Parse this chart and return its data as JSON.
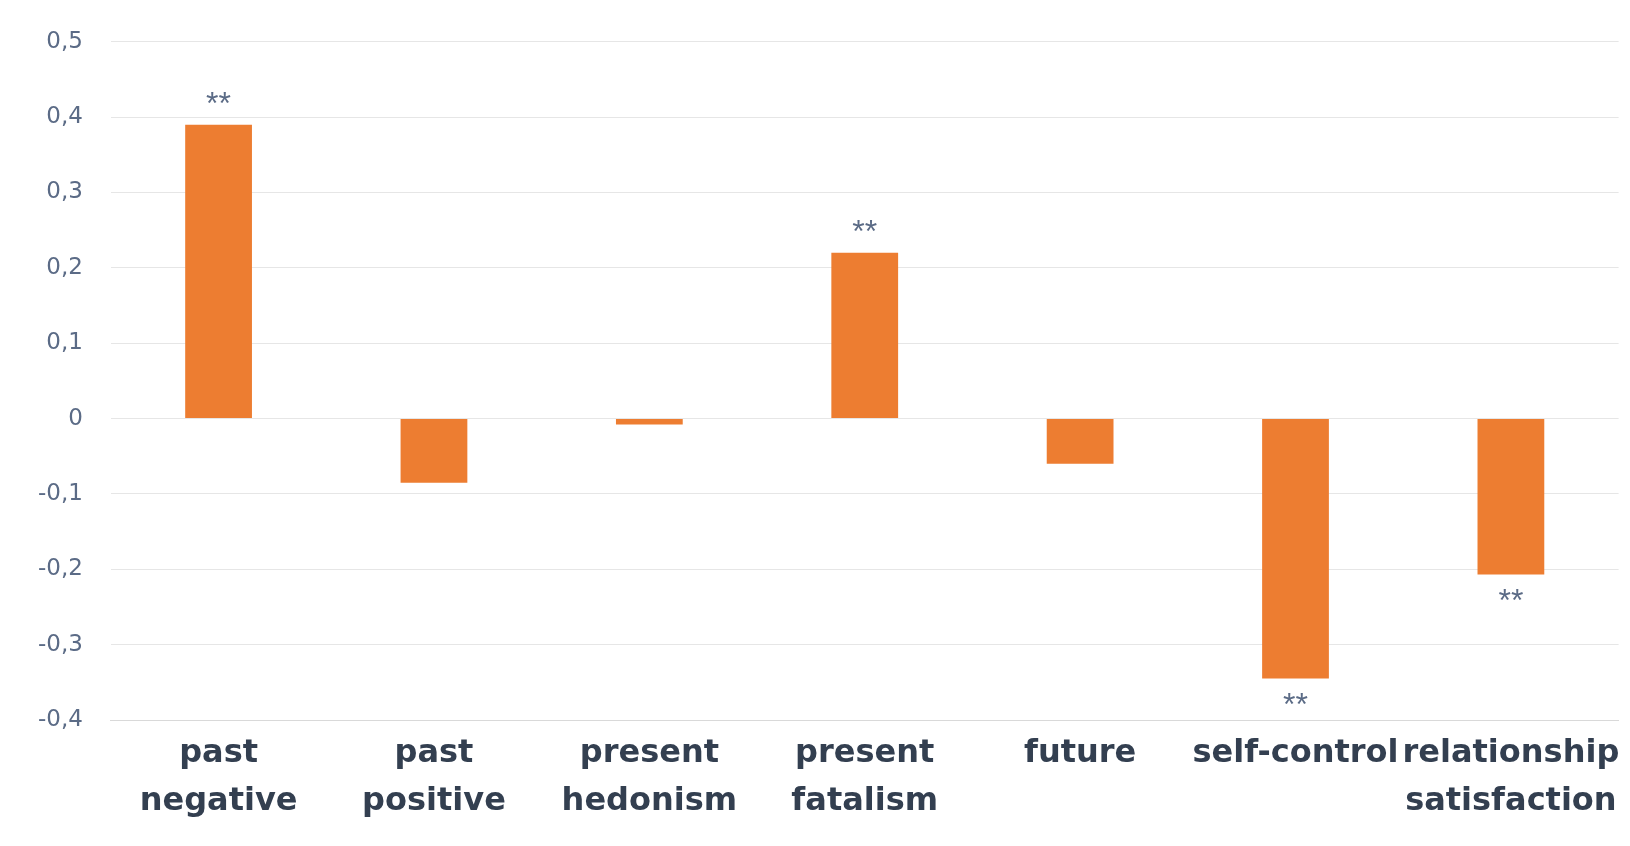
{
  "chart_data": {
    "type": "bar",
    "categories": [
      "past negative",
      "past positive",
      "present hedonism",
      "present fatalism",
      "future",
      "self-control",
      "relationship satisfaction"
    ],
    "values": [
      0.39,
      -0.085,
      -0.008,
      0.22,
      -0.06,
      -0.345,
      -0.207
    ],
    "color": "#ed7d31",
    "ylim": [
      -0.4,
      0.5
    ],
    "yticks": [
      {
        "value": -0.4,
        "label": "-0,4"
      },
      {
        "value": -0.3,
        "label": "-0,3"
      },
      {
        "value": -0.2,
        "label": "-0,2"
      },
      {
        "value": -0.1,
        "label": "-0,1"
      },
      0,
      {
        "value": 0.1,
        "label": "0,1"
      },
      {
        "value": 0.2,
        "label": "0,2"
      },
      {
        "value": 0.3,
        "label": "0,3"
      },
      {
        "value": 0.4,
        "label": "0,4"
      },
      {
        "value": 0.5,
        "label": "0,5"
      }
    ],
    "grid": "y",
    "annotations": [
      {
        "text": "**",
        "x": "past negative",
        "y": 0.39
      },
      {
        "text": "**",
        "x": "present fatalism",
        "y": 0.22
      },
      {
        "text": "**",
        "x": "self-control",
        "y": -0.345
      },
      {
        "text": "**",
        "x": "relationship satisfaction",
        "y": -0.207
      }
    ]
  }
}
